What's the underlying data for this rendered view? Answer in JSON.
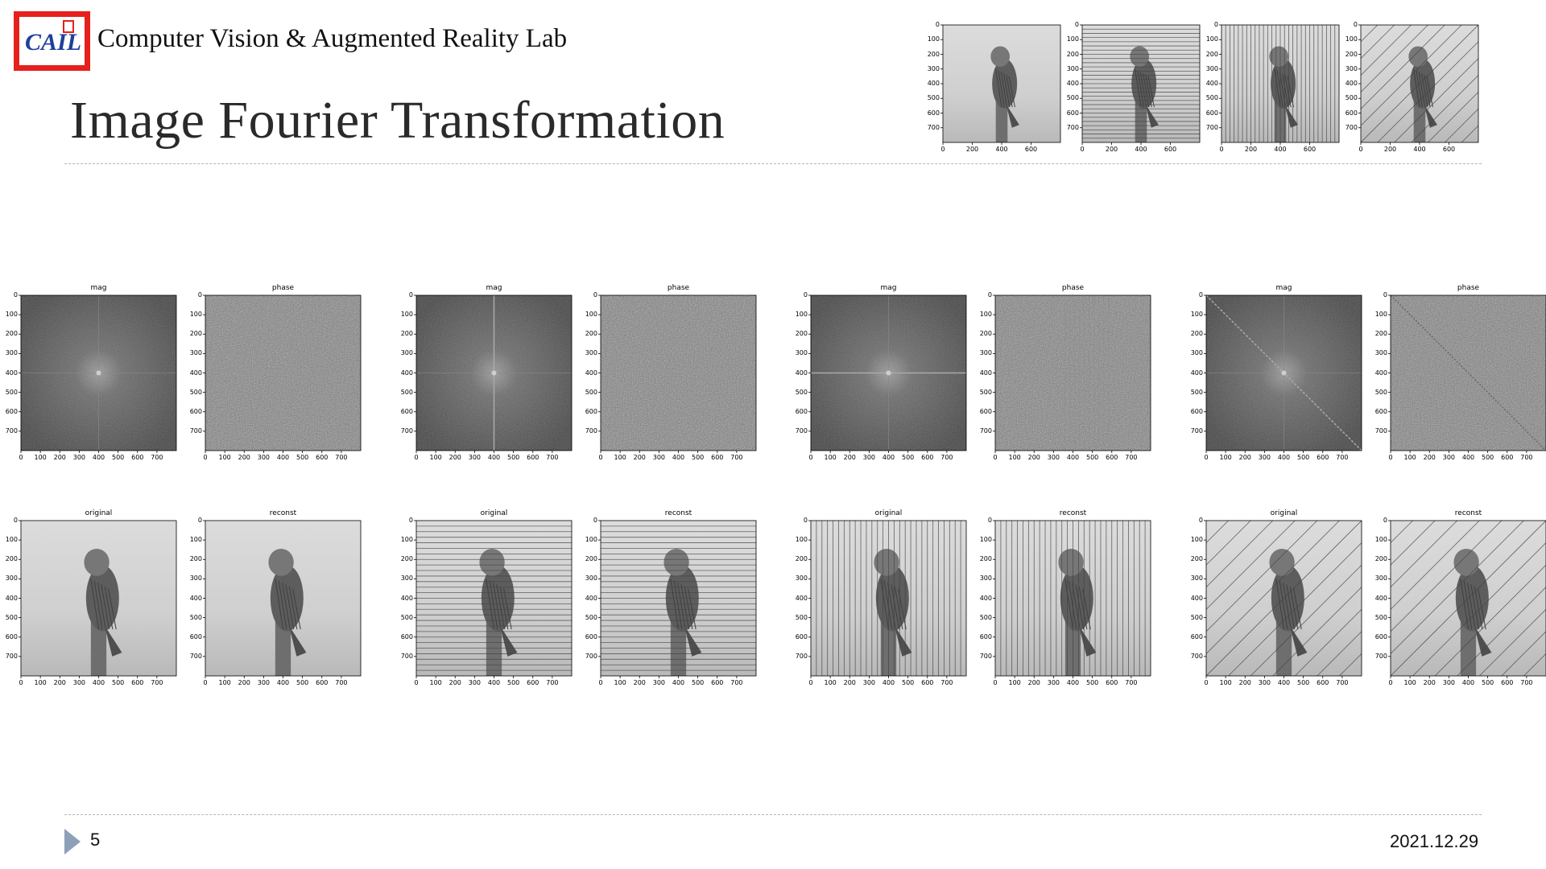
{
  "header": {
    "logo_text": "CAIL",
    "lab_name": "Computer Vision & Augmented Reality Lab",
    "title": "Image Fourier Transformation"
  },
  "footer": {
    "page_number": "5",
    "date": "2021.12.29"
  },
  "figures": {
    "top_row": {
      "y_ticks": [
        "0",
        "100",
        "200",
        "300",
        "400",
        "500",
        "600",
        "700"
      ],
      "x_ticks": [
        "0",
        "200",
        "400",
        "600"
      ],
      "variants": [
        "none",
        "horizontal",
        "vertical",
        "diagonal"
      ]
    },
    "panel_y_ticks": [
      "0",
      "100",
      "200",
      "300",
      "400",
      "500",
      "600",
      "700"
    ],
    "panel_x_ticks": [
      "0",
      "100",
      "200",
      "300",
      "400",
      "500",
      "600",
      "700"
    ],
    "panels": [
      {
        "title": "mag",
        "kind": "mag",
        "variant": "none"
      },
      {
        "title": "phase",
        "kind": "phase",
        "variant": "none"
      },
      {
        "title": "mag",
        "kind": "mag",
        "variant": "horizontal"
      },
      {
        "title": "phase",
        "kind": "phase",
        "variant": "horizontal"
      },
      {
        "title": "mag",
        "kind": "mag",
        "variant": "vertical"
      },
      {
        "title": "phase",
        "kind": "phase",
        "variant": "vertical"
      },
      {
        "title": "mag",
        "kind": "mag",
        "variant": "diagonal"
      },
      {
        "title": "phase",
        "kind": "phase",
        "variant": "diagonal"
      },
      {
        "title": "original",
        "kind": "owl",
        "variant": "none"
      },
      {
        "title": "reconst",
        "kind": "owl",
        "variant": "none"
      },
      {
        "title": "original",
        "kind": "owl",
        "variant": "horizontal"
      },
      {
        "title": "reconst",
        "kind": "owl",
        "variant": "horizontal"
      },
      {
        "title": "original",
        "kind": "owl",
        "variant": "vertical"
      },
      {
        "title": "reconst",
        "kind": "owl",
        "variant": "vertical"
      },
      {
        "title": "original",
        "kind": "owl",
        "variant": "diagonal"
      },
      {
        "title": "reconst",
        "kind": "owl",
        "variant": "diagonal"
      }
    ]
  }
}
